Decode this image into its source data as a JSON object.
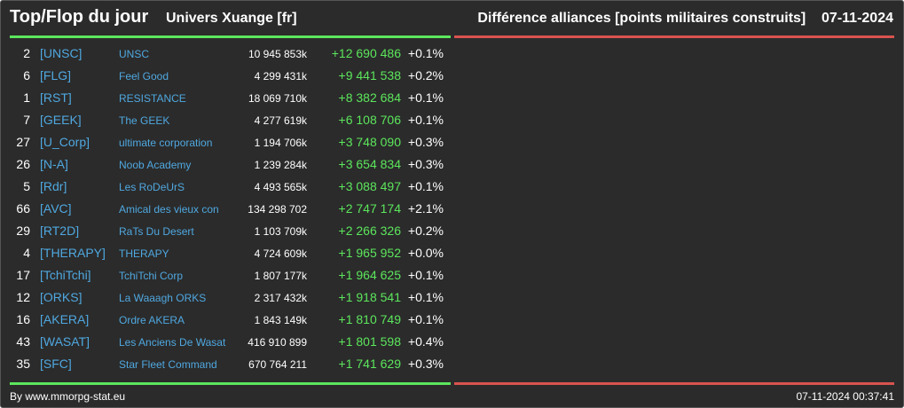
{
  "header": {
    "title": "Top/Flop du jour",
    "universe": "Univers Xuange [fr]",
    "description": "Différence alliances [points militaires construits]",
    "date": "07-11-2024"
  },
  "rows": [
    {
      "rank": "2",
      "tag": "[UNSC]",
      "name": "UNSC",
      "points": "10 945 853k",
      "diff": "+12 690 486",
      "pct": "+0.1%"
    },
    {
      "rank": "6",
      "tag": "[FLG]",
      "name": "Feel Good",
      "points": "4 299 431k",
      "diff": "+9 441 538",
      "pct": "+0.2%"
    },
    {
      "rank": "1",
      "tag": "[RST]",
      "name": "RESISTANCE",
      "points": "18 069 710k",
      "diff": "+8 382 684",
      "pct": "+0.1%"
    },
    {
      "rank": "7",
      "tag": "[GEEK]",
      "name": "The GEEK",
      "points": "4 277 619k",
      "diff": "+6 108 706",
      "pct": "+0.1%"
    },
    {
      "rank": "27",
      "tag": "[U_Corp]",
      "name": "ultimate corporation",
      "points": "1 194 706k",
      "diff": "+3 748 090",
      "pct": "+0.3%"
    },
    {
      "rank": "26",
      "tag": "[N-A]",
      "name": "Noob Academy",
      "points": "1 239 284k",
      "diff": "+3 654 834",
      "pct": "+0.3%"
    },
    {
      "rank": "5",
      "tag": "[Rdr]",
      "name": "Les RoDeUrS",
      "points": "4 493 565k",
      "diff": "+3 088 497",
      "pct": "+0.1%"
    },
    {
      "rank": "66",
      "tag": "[AVC]",
      "name": "Amical des vieux con",
      "points": "134 298 702",
      "diff": "+2 747 174",
      "pct": "+2.1%"
    },
    {
      "rank": "29",
      "tag": "[RT2D]",
      "name": "RaTs Du Desert",
      "points": "1 103 709k",
      "diff": "+2 266 326",
      "pct": "+0.2%"
    },
    {
      "rank": "4",
      "tag": "[THERAPY]",
      "name": "THERAPY",
      "points": "4 724 609k",
      "diff": "+1 965 952",
      "pct": "+0.0%"
    },
    {
      "rank": "17",
      "tag": "[TchiTchi]",
      "name": "TchiTchi Corp",
      "points": "1 807 177k",
      "diff": "+1 964 625",
      "pct": "+0.1%"
    },
    {
      "rank": "12",
      "tag": "[ORKS]",
      "name": "La Waaagh ORKS",
      "points": "2 317 432k",
      "diff": "+1 918 541",
      "pct": "+0.1%"
    },
    {
      "rank": "16",
      "tag": "[AKERA]",
      "name": "Ordre AKERA",
      "points": "1 843 149k",
      "diff": "+1 810 749",
      "pct": "+0.1%"
    },
    {
      "rank": "43",
      "tag": "[WASAT]",
      "name": "Les Anciens De Wasat",
      "points": "416 910 899",
      "diff": "+1 801 598",
      "pct": "+0.4%"
    },
    {
      "rank": "35",
      "tag": "[SFC]",
      "name": "Star Fleet Command",
      "points": "670 764 211",
      "diff": "+1 741 629",
      "pct": "+0.3%"
    }
  ],
  "footer": {
    "source": "By www.mmorpg-stat.eu",
    "timestamp": "07-11-2024 00:37:41"
  },
  "colors": {
    "background": "#2b2b2b",
    "link": "#4fa8e0",
    "gain": "#5ce65c",
    "loss": "#d9534f"
  }
}
